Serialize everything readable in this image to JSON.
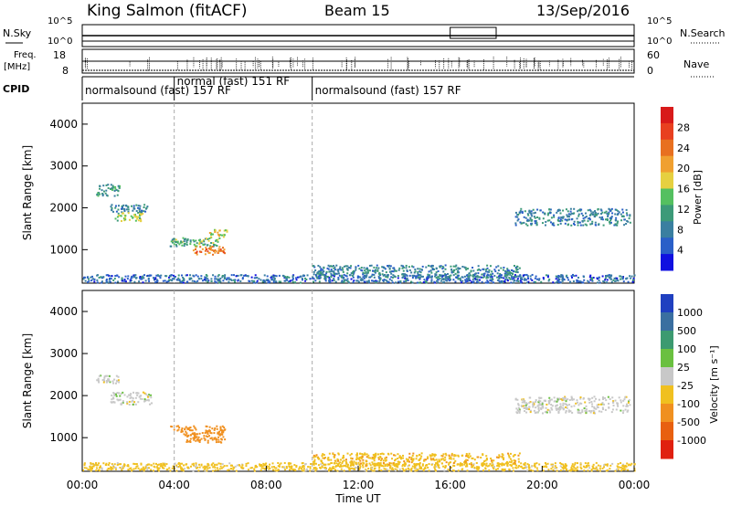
{
  "header": {
    "station": "King Salmon (fitACF)",
    "beam": "Beam 15",
    "date": "13/Sep/2016"
  },
  "status_panels": {
    "nsky_label": "N.Sky",
    "nsearch_label": "N.Search",
    "freq_label_1": "Freq.",
    "freq_label_2": "[MHz]",
    "nave_label": "Nave",
    "cpid_label": "CPID",
    "left_ticks_top": [
      "10^5",
      "10^0"
    ],
    "right_ticks_top": [
      "10^5",
      "10^0"
    ],
    "left_ticks_freq": [
      "18",
      "8"
    ],
    "right_ticks_nave": [
      "60",
      "0"
    ],
    "cpid_segments": [
      {
        "label": "normalsound (fast) 157 RF",
        "start_h": 0.0,
        "end_h": 4.0
      },
      {
        "label": "normal (fast) 151 RF",
        "start_h": 4.0,
        "end_h": 10.0
      },
      {
        "label": "normalsound (fast) 157 RF",
        "start_h": 10.0,
        "end_h": 24.0
      }
    ]
  },
  "chart_data": [
    {
      "type": "heatmap",
      "name": "power",
      "ylabel": "Slant Range [km]",
      "xlabel": "Time UT",
      "xlim": [
        0,
        24
      ],
      "ylim": [
        200,
        4500
      ],
      "x_ticks": [
        "00:00",
        "04:00",
        "08:00",
        "12:00",
        "16:00",
        "20:00",
        "00:00"
      ],
      "y_ticks": [
        "1000",
        "2000",
        "3000",
        "4000"
      ],
      "colorbar_label": "Power [dB]",
      "colorbar_ticks": [
        "4",
        "8",
        "12",
        "16",
        "20",
        "24",
        "28"
      ],
      "colorbar_colors": [
        "#1010e0",
        "#2a5fc8",
        "#3a7fa0",
        "#3c9a78",
        "#54c060",
        "#e6d040",
        "#f0a030",
        "#e87020",
        "#e84020",
        "#d81a1a"
      ],
      "clusters": [
        {
          "t0": 0.6,
          "t1": 1.6,
          "r0": 2300,
          "r1": 2600,
          "power": 10
        },
        {
          "t0": 1.2,
          "t1": 2.8,
          "r0": 1900,
          "r1": 2100,
          "power": 8
        },
        {
          "t0": 1.4,
          "t1": 2.6,
          "r0": 1700,
          "r1": 1900,
          "power": 14
        },
        {
          "t0": 3.8,
          "t1": 6.0,
          "r0": 1100,
          "r1": 1300,
          "power": 12
        },
        {
          "t0": 4.8,
          "t1": 6.2,
          "r0": 900,
          "r1": 1100,
          "power": 22
        },
        {
          "t0": 5.5,
          "t1": 6.3,
          "r0": 1300,
          "r1": 1500,
          "power": 16
        },
        {
          "t0": 18.8,
          "t1": 23.8,
          "r0": 1600,
          "r1": 2000,
          "power": 8
        },
        {
          "t0": 0.0,
          "t1": 24.0,
          "r0": 230,
          "r1": 420,
          "power": 6
        },
        {
          "t0": 10.0,
          "t1": 19.0,
          "r0": 350,
          "r1": 650,
          "power": 8
        }
      ]
    },
    {
      "type": "heatmap",
      "name": "velocity",
      "ylabel": "Slant Range [km]",
      "xlabel": "Time UT",
      "xlim": [
        0,
        24
      ],
      "ylim": [
        200,
        4500
      ],
      "x_ticks": [
        "00:00",
        "04:00",
        "08:00",
        "12:00",
        "16:00",
        "20:00",
        "00:00"
      ],
      "y_ticks": [
        "1000",
        "2000",
        "3000",
        "4000"
      ],
      "colorbar_label": "Velocity [m s⁻¹]",
      "colorbar_ticks": [
        "1000",
        "500",
        "100",
        "25",
        "-25",
        "-100",
        "-500",
        "-1000"
      ],
      "colorbar_colors": [
        "#2040c0",
        "#3a6fa0",
        "#3c9a70",
        "#6ac040",
        "#c8c8c8",
        "#f0c020",
        "#f09020",
        "#e86010",
        "#e02010"
      ],
      "clusters": [
        {
          "t0": 0.6,
          "t1": 1.6,
          "r0": 2300,
          "r1": 2500,
          "velocity": 0
        },
        {
          "t0": 1.2,
          "t1": 3.0,
          "r0": 1800,
          "r1": 2100,
          "velocity": 0
        },
        {
          "t0": 3.8,
          "t1": 6.2,
          "r0": 1100,
          "r1": 1300,
          "velocity": -300
        },
        {
          "t0": 4.4,
          "t1": 6.2,
          "r0": 900,
          "r1": 1100,
          "velocity": -150
        },
        {
          "t0": 18.8,
          "t1": 23.8,
          "r0": 1600,
          "r1": 2000,
          "velocity": 0
        },
        {
          "t0": 0.0,
          "t1": 24.0,
          "r0": 230,
          "r1": 420,
          "velocity": -50
        },
        {
          "t0": 10.0,
          "t1": 19.0,
          "r0": 350,
          "r1": 650,
          "velocity": -80
        }
      ]
    }
  ]
}
